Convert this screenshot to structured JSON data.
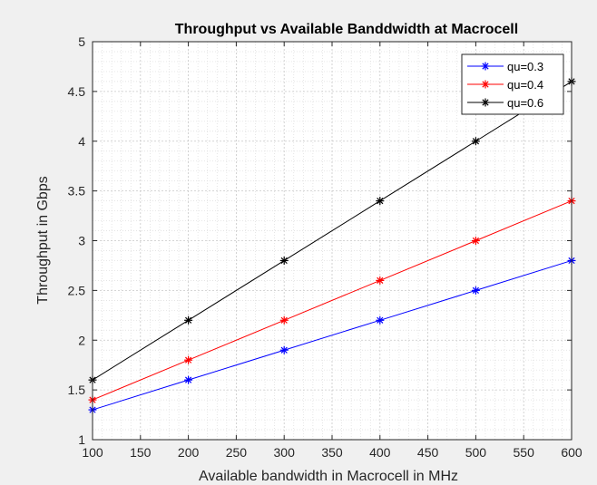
{
  "chart_data": {
    "type": "line",
    "title": "Throughput vs Available Banddwidth at Macrocell",
    "xlabel": "Available bandwidth in Macrocell in MHz",
    "ylabel": "Throughput in Gbps",
    "xlim": [
      100,
      600
    ],
    "ylim": [
      1,
      5
    ],
    "xticks": [
      100,
      150,
      200,
      250,
      300,
      350,
      400,
      450,
      500,
      550,
      600
    ],
    "yticks": [
      1,
      1.5,
      2,
      2.5,
      3,
      3.5,
      4,
      4.5,
      5
    ],
    "ytick_labels": [
      "1",
      "1.5",
      "2",
      "2.5",
      "3",
      "3.5",
      "4",
      "4.5",
      "5"
    ],
    "grid": true,
    "minor_grid": true,
    "legend_position": "top-right",
    "x": [
      100,
      200,
      300,
      400,
      500,
      600
    ],
    "series": [
      {
        "name": "qu=0.3",
        "color": "#0000ff",
        "marker": "asterisk",
        "values": [
          1.3,
          1.6,
          1.9,
          2.2,
          2.5,
          2.8
        ]
      },
      {
        "name": "qu=0.4",
        "color": "#ff0000",
        "marker": "asterisk",
        "values": [
          1.4,
          1.8,
          2.2,
          2.6,
          3.0,
          3.4
        ]
      },
      {
        "name": "qu=0.6",
        "color": "#000000",
        "marker": "asterisk",
        "values": [
          1.6,
          2.2,
          2.8,
          3.4,
          4.0,
          4.6
        ]
      }
    ]
  }
}
